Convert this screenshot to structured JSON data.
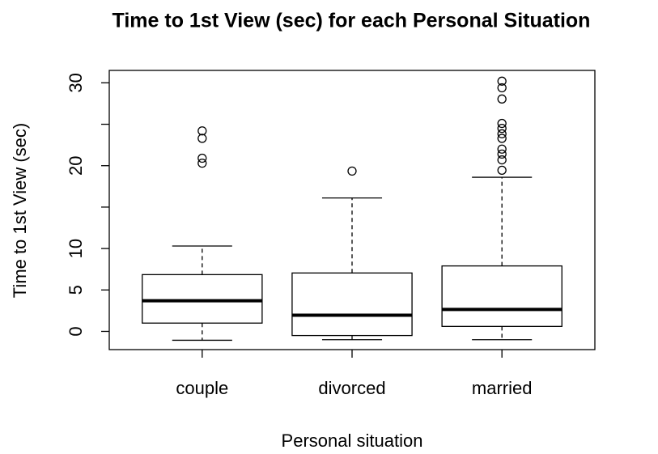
{
  "chart_data": {
    "type": "boxplot",
    "title": "Time to 1st View (sec) for each Personal Situation",
    "x_label": "Personal situation",
    "y_label": "Time to 1st View (sec)",
    "categories": [
      "couple",
      "divorced",
      "married"
    ],
    "boxes": [
      {
        "min": -1.07,
        "q1": 1.0,
        "median": 3.7,
        "q3": 6.85,
        "max": 10.3,
        "outliers": [
          24.2,
          23.3,
          20.9,
          20.3
        ]
      },
      {
        "min": -1.0,
        "q1": -0.5,
        "median": 1.95,
        "q3": 7.05,
        "max": 16.1,
        "outliers": [
          19.35
        ]
      },
      {
        "min": -1.0,
        "q1": 0.6,
        "median": 2.65,
        "q3": 7.9,
        "max": 18.6,
        "outliers": [
          30.2,
          29.4,
          28.05,
          25.1,
          24.5,
          23.85,
          23.3,
          22.0,
          21.4,
          20.7,
          19.45
        ]
      }
    ],
    "color": "#000000",
    "ylim": [
      -2.2,
      31.5
    ],
    "yticks": [
      0,
      5,
      10,
      20,
      30
    ],
    "yticks_unlabeled": [
      15,
      25
    ]
  }
}
